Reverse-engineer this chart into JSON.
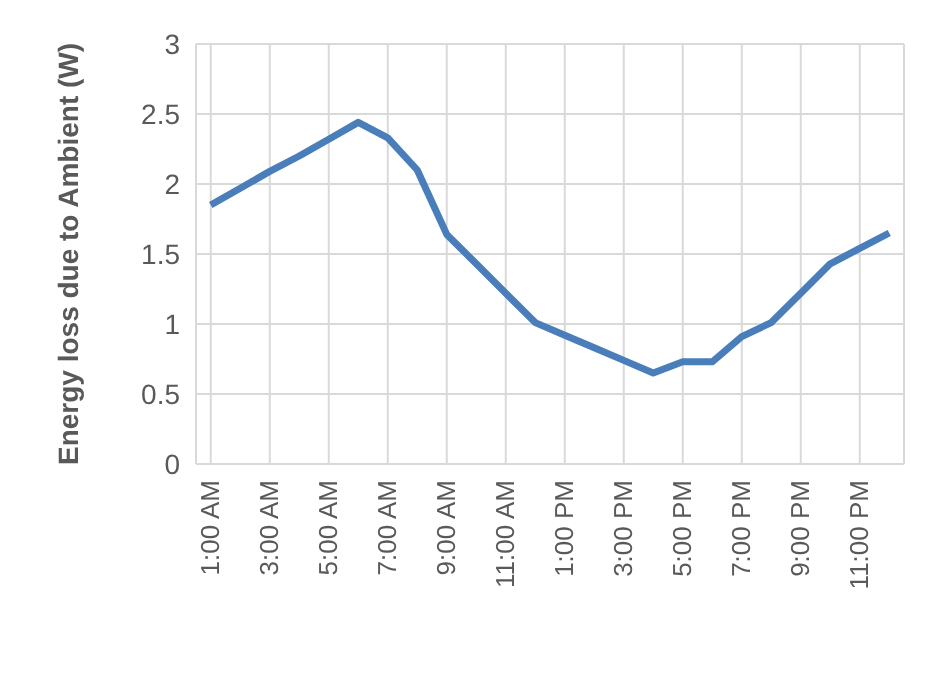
{
  "chart_data": {
    "type": "line",
    "ylabel": "Energy loss due to Ambient (W)",
    "categories": [
      "1:00 AM",
      null,
      "3:00 AM",
      null,
      "5:00 AM",
      null,
      "7:00 AM",
      null,
      "9:00 AM",
      null,
      "11:00 AM",
      null,
      "1:00 PM",
      null,
      "3:00 PM",
      null,
      "5:00 PM",
      null,
      "7:00 PM",
      null,
      "9:00 PM",
      null,
      "11:00 PM",
      null
    ],
    "series": [
      {
        "color": "#4a7ebb",
        "values": [
          1.85,
          1.97,
          2.09,
          2.2,
          2.32,
          2.44,
          2.33,
          2.1,
          1.64,
          1.43,
          1.22,
          1.01,
          0.92,
          0.83,
          0.74,
          0.65,
          0.73,
          0.73,
          0.91,
          1.01,
          1.22,
          1.43,
          1.54,
          1.65
        ]
      }
    ],
    "ylim": [
      0,
      3
    ],
    "yticks": [
      0,
      0.5,
      1,
      1.5,
      2,
      2.5,
      3
    ],
    "grid": true,
    "legend": false,
    "marker": "none",
    "line_style": "solid"
  }
}
